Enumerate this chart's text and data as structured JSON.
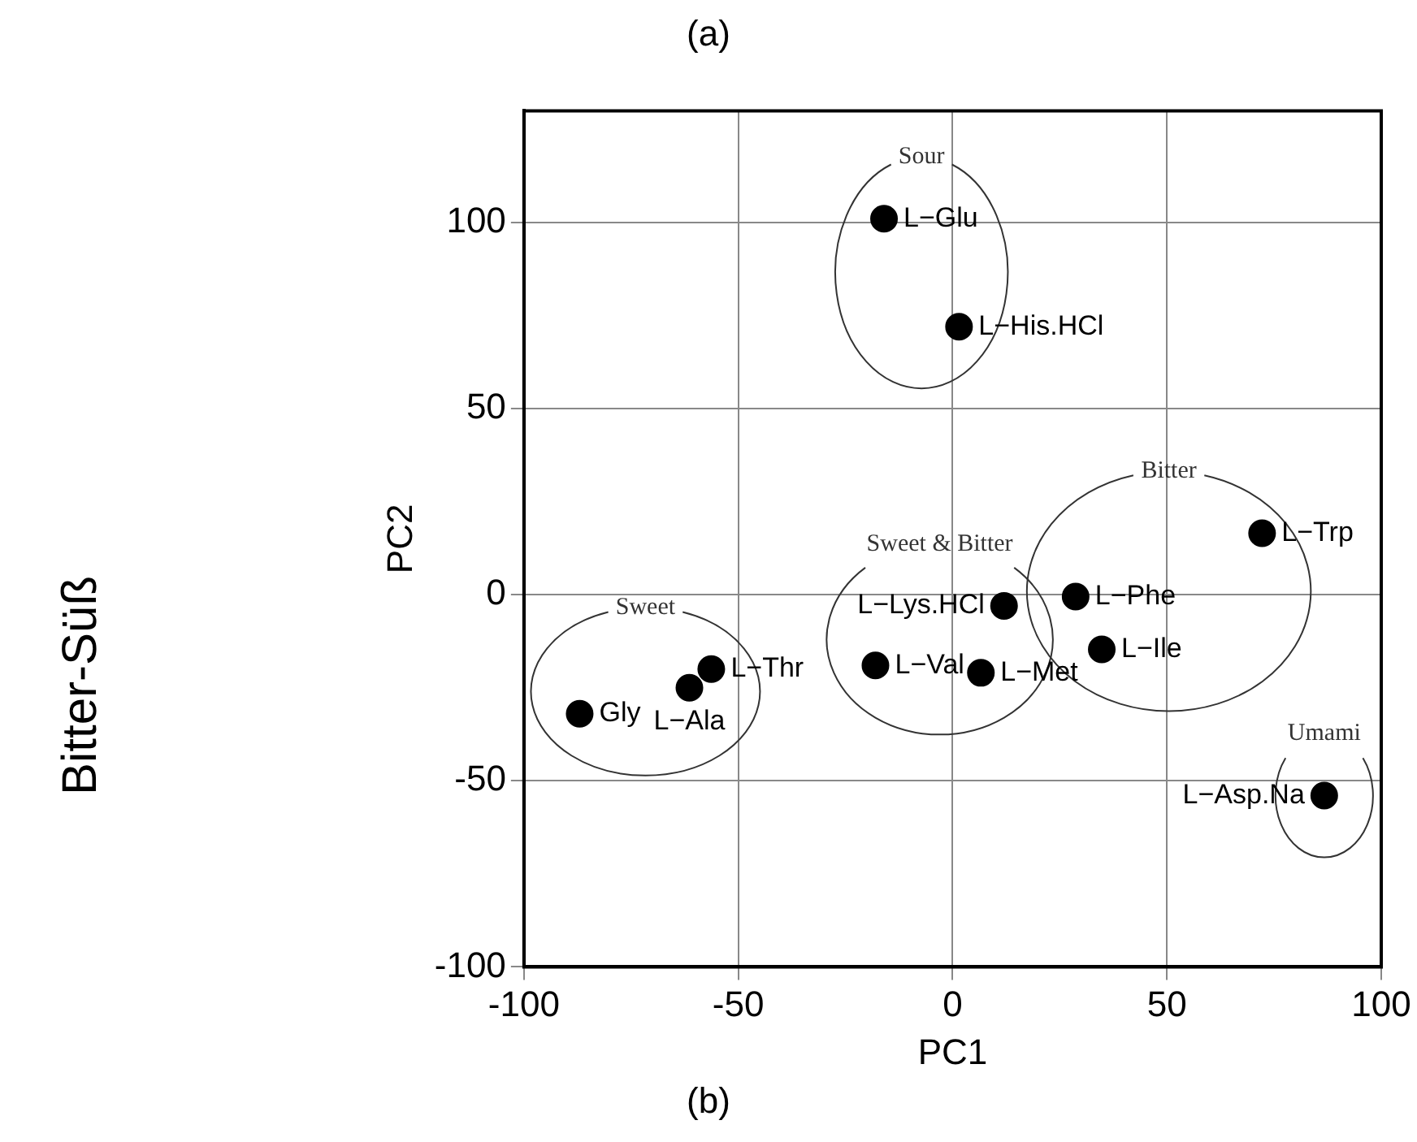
{
  "chart_data": {
    "type": "scatter",
    "title": "(a)",
    "xlabel": "PC1",
    "ylabel": "PC2",
    "xlim": [
      -100,
      100
    ],
    "xticks": [
      -100,
      -50,
      0,
      50,
      100
    ],
    "ylim": [
      -100,
      130
    ],
    "yticks": [
      -100,
      -50,
      0,
      50,
      100
    ],
    "grid": true,
    "legend": false,
    "marker": "circle",
    "series": [
      {
        "name": "Sweet",
        "color": "#000000",
        "x": [
          -87,
          -61.4,
          -56.3
        ],
        "values": [
          -32,
          -25,
          -20
        ]
      },
      {
        "name": "Sweet & Bitter",
        "color": "#000000",
        "x": [
          -18,
          12,
          6.6
        ],
        "values": [
          -19,
          -3,
          -21
        ]
      },
      {
        "name": "Sour",
        "color": "#000000",
        "x": [
          -16,
          1.5
        ],
        "values": [
          101,
          72
        ]
      },
      {
        "name": "Bitter",
        "color": "#000000",
        "x": [
          28.7,
          34.8,
          72.2
        ],
        "values": [
          -0.5,
          -14.7,
          16.5
        ]
      },
      {
        "name": "Umami",
        "color": "#000000",
        "x": [
          86.7
        ],
        "values": [
          -54
        ]
      }
    ],
    "annotations": [
      {
        "text": "Gly",
        "x": -87,
        "y": -32
      },
      {
        "text": "L−Thr",
        "x": -56.3,
        "y": -20
      },
      {
        "text": "L−Ala",
        "x": -61.4,
        "y": -25
      },
      {
        "text": "L−Val",
        "x": -18,
        "y": -19
      },
      {
        "text": "L−Lys.HCl",
        "x": 12,
        "y": -3
      },
      {
        "text": "L−Met",
        "x": 6.6,
        "y": -21
      },
      {
        "text": "L−Glu",
        "x": -16,
        "y": 101
      },
      {
        "text": "L−His.HCl",
        "x": 1.5,
        "y": 72
      },
      {
        "text": "L−Phe",
        "x": 28.7,
        "y": -0.5
      },
      {
        "text": "L−Ile",
        "x": 34.8,
        "y": -14.7
      },
      {
        "text": "L−Trp",
        "x": 72.2,
        "y": 16.5
      },
      {
        "text": "L−Asp.Na",
        "x": 86.7,
        "y": -54
      },
      "(b)",
      "Bitter-Süß"
    ]
  }
}
